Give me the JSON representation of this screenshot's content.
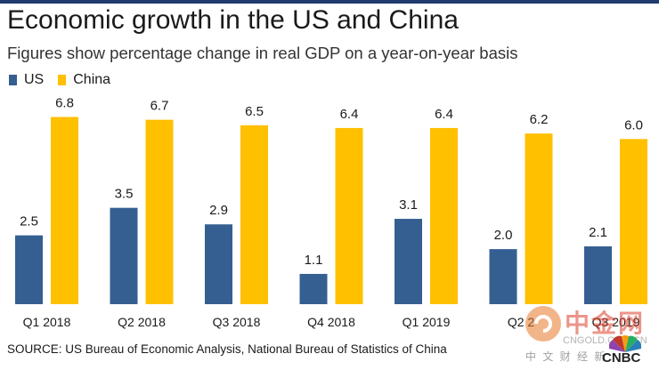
{
  "header": {
    "title": "Economic growth in the US and China",
    "subtitle": "Figures show percentage change in real GDP on a year-on-year basis"
  },
  "chart_data": {
    "type": "bar",
    "title": "Economic growth in the US and China",
    "subtitle": "Figures show percentage change in real GDP on a year-on-year basis",
    "categories": [
      "Q1 2018",
      "Q2 2018",
      "Q3 2018",
      "Q4 2018",
      "Q1 2019",
      "Q2 2019",
      "Q3 2019"
    ],
    "category_labels": [
      "Q1 2018",
      "Q2 2018",
      "Q3 2018",
      "Q4 2018",
      "Q1 2019",
      "Q2 2",
      "Q3 2019"
    ],
    "series": [
      {
        "name": "US",
        "color": "#355f91",
        "values": [
          2.5,
          3.5,
          2.9,
          1.1,
          3.1,
          2.0,
          2.1
        ]
      },
      {
        "name": "China",
        "color": "#ffc000",
        "values": [
          6.8,
          6.7,
          6.5,
          6.4,
          6.4,
          6.2,
          6.0
        ]
      }
    ],
    "value_labels": [
      [
        "2.5",
        "3.5",
        "2.9",
        "1.1",
        "3.1",
        "2.0",
        "2.1"
      ],
      [
        "6.8",
        "6.7",
        "6.5",
        "6.4",
        "6.4",
        "6.2",
        "6.0"
      ]
    ],
    "ylim": [
      0,
      7.2
    ],
    "xlabel": "",
    "ylabel": "",
    "grid": false,
    "legend_position": "top-left",
    "data_labels": true
  },
  "footer": {
    "source": "SOURCE: US Bureau of Economic Analysis, National Bureau of Statistics of China"
  },
  "watermark": {
    "chinese": "中金网",
    "domain": "CNGOLD.COM.CN",
    "tagline": "中 文 财 经 新",
    "brand": "CNBC"
  }
}
